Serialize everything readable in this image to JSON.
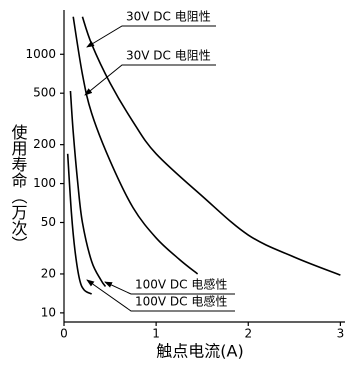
{
  "chart_data": {
    "type": "line",
    "x_label": "触点电流(A)",
    "y_label": "使用寿命（万次）",
    "ylog": true,
    "xlim": [
      0,
      3.05
    ],
    "xticks": [
      0,
      1,
      2,
      3
    ],
    "ylim": [
      8.5,
      2200
    ],
    "yticks": [
      10,
      20,
      50,
      100,
      200,
      500,
      1000
    ],
    "series": [
      {
        "name": "30V DC 电阻性",
        "color": "#000000",
        "x": [
          0.2,
          0.3,
          0.5,
          0.75,
          1,
          1.5,
          2,
          2.5,
          3
        ],
        "values": [
          1950,
          1200,
          600,
          300,
          170,
          80,
          40,
          27,
          19.6
        ]
      },
      {
        "name": "30V DC 电阻性",
        "color": "#000000",
        "x": [
          0.1,
          0.2,
          0.3,
          0.5,
          0.75,
          1,
          1.25,
          1.45
        ],
        "values": [
          1950,
          700,
          350,
          150,
          65,
          38,
          26,
          20
        ]
      },
      {
        "name": "100V DC 电感性",
        "color": "#000000",
        "x": [
          0.07,
          0.1,
          0.15,
          0.2,
          0.3,
          0.4,
          0.45
        ],
        "values": [
          520,
          250,
          100,
          50,
          25,
          18,
          16
        ]
      },
      {
        "name": "100V DC 电感性",
        "color": "#000000",
        "x": [
          0.04,
          0.08,
          0.12,
          0.17,
          0.22,
          0.3
        ],
        "values": [
          170,
          60,
          30,
          18,
          15,
          14
        ]
      }
    ]
  }
}
